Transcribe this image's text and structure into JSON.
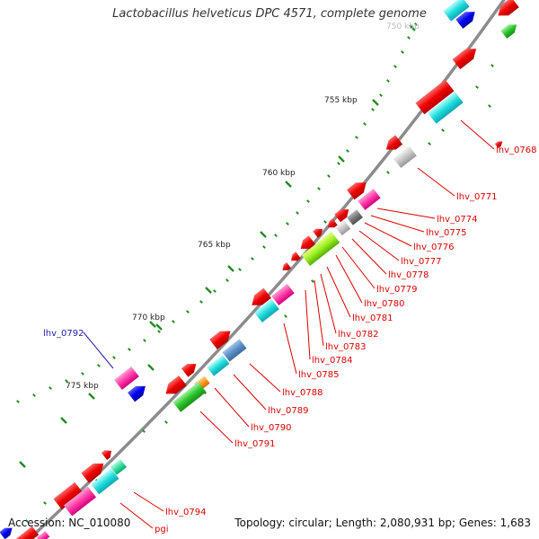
{
  "header": {
    "title": "Lactobacillus helveticus DPC 4571, complete genome"
  },
  "footer": {
    "accession": "Accession: NC_010080",
    "summary": "Topology: circular; Length: 2,080,931 bp; Genes: 1,683"
  },
  "colors": {
    "backbone": "#8c8c8c",
    "tick": "#228b22",
    "gene_label": "#dd0000",
    "highlight_label": "#1c1ca8",
    "ruler_text": "#222222"
  },
  "ruler": [
    "755 kbp",
    "760 kbp",
    "765 kbp",
    "770 kbp",
    "775 kbp"
  ],
  "gene_labels": [
    {
      "id": "lhv_0768",
      "text": "lhv_0768",
      "color": "red"
    },
    {
      "id": "lhv_0771",
      "text": "lhv_0771",
      "color": "red"
    },
    {
      "id": "lhv_0774",
      "text": "lhv_0774",
      "color": "red"
    },
    {
      "id": "lhv_0775",
      "text": "lhv_0775",
      "color": "red"
    },
    {
      "id": "lhv_0776",
      "text": "lhv_0776",
      "color": "red"
    },
    {
      "id": "lhv_0777",
      "text": "lhv_0777",
      "color": "red"
    },
    {
      "id": "lhv_0778",
      "text": "lhv_0778",
      "color": "red"
    },
    {
      "id": "lhv_0779",
      "text": "lhv_0779",
      "color": "red"
    },
    {
      "id": "lhv_0780",
      "text": "lhv_0780",
      "color": "red"
    },
    {
      "id": "lhv_0781",
      "text": "lhv_0781",
      "color": "red"
    },
    {
      "id": "lhv_0782",
      "text": "lhv_0782",
      "color": "red"
    },
    {
      "id": "lhv_0783",
      "text": "lhv_0783",
      "color": "red"
    },
    {
      "id": "lhv_0784",
      "text": "lhv_0784",
      "color": "red"
    },
    {
      "id": "lhv_0785",
      "text": "lhv_0785",
      "color": "red"
    },
    {
      "id": "lhv_0788",
      "text": "lhv_0788",
      "color": "red"
    },
    {
      "id": "lhv_0789",
      "text": "lhv_0789",
      "color": "red"
    },
    {
      "id": "lhv_0790",
      "text": "lhv_0790",
      "color": "red"
    },
    {
      "id": "lhv_0791",
      "text": "lhv_0791",
      "color": "red"
    },
    {
      "id": "lhv_0792",
      "text": "lhv_0792",
      "color": "blue"
    },
    {
      "id": "lhv_0794",
      "text": "lhv_0794",
      "color": "red"
    },
    {
      "id": "pgi",
      "text": "pgi",
      "color": "red"
    }
  ]
}
